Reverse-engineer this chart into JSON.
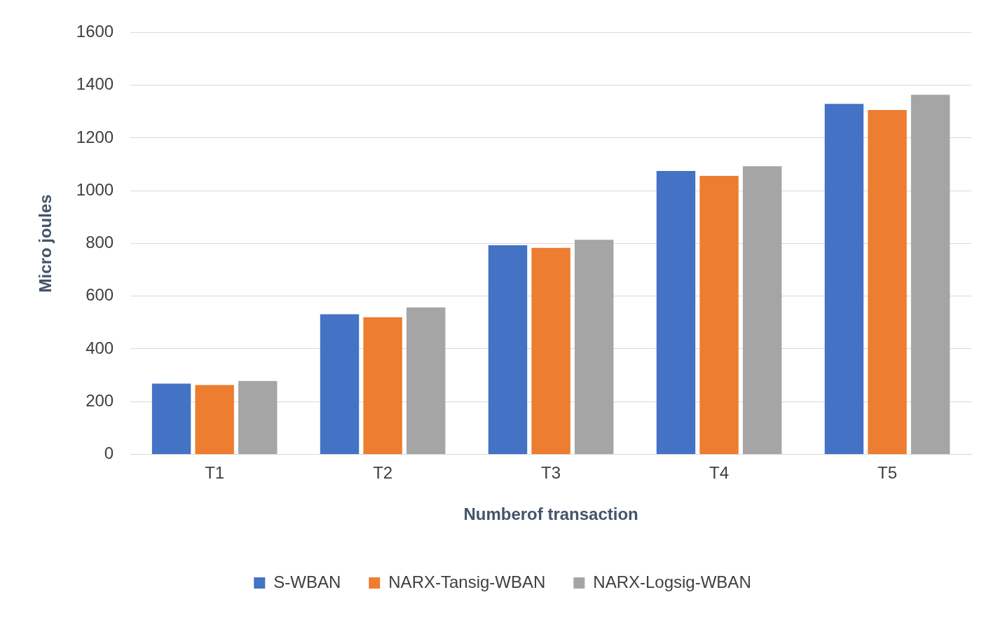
{
  "chart_data": {
    "type": "bar",
    "xlabel": "Numberof transaction",
    "ylabel": "Micro joules",
    "categories": [
      "T1",
      "T2",
      "T3",
      "T4",
      "T5"
    ],
    "series": [
      {
        "name": "S-WBAN",
        "color": "#4472c4",
        "values": [
          268,
          531,
          793,
          1075,
          1329
        ]
      },
      {
        "name": "NARX-Tansig-WBAN",
        "color": "#ed7d31",
        "values": [
          263,
          520,
          783,
          1056,
          1306
        ]
      },
      {
        "name": "NARX-Logsig-WBAN",
        "color": "#a5a5a5",
        "values": [
          278,
          557,
          814,
          1093,
          1364
        ]
      }
    ],
    "ylim": [
      0,
      1600
    ],
    "yticks": [
      0,
      200,
      400,
      600,
      800,
      1000,
      1200,
      1400,
      1600
    ],
    "grid": "y",
    "legend": "bottom"
  }
}
